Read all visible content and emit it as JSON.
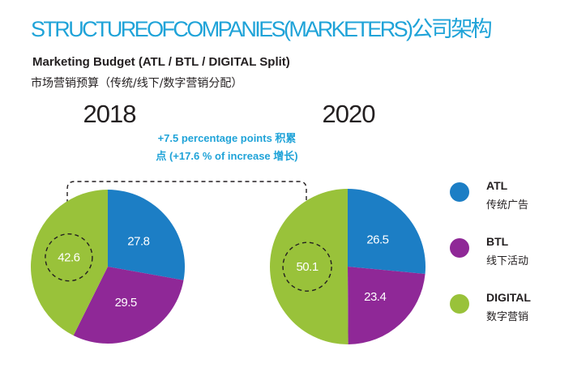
{
  "header": {
    "title": "STRUCTUREOFCOMPANIES(MARKETERS)公司架构",
    "subtitle_en": "Marketing Budget (ATL / BTL / DIGITAL Split)",
    "subtitle_cn": "市场营销预算（传统/线下/数字营销分配）"
  },
  "annotation": {
    "line1": "+7.5 percentage points 积累",
    "line2": "点 (+17.6 % of increase 增长)"
  },
  "colors": {
    "title": "#1fa3d8",
    "atl": "#1c7ec5",
    "btl": "#8f2897",
    "digital": "#99c23a",
    "text_dark": "#231f20",
    "slice_text": "#ffffff"
  },
  "chart_data": [
    {
      "type": "pie",
      "title": "2018",
      "slices": [
        {
          "label": "ATL",
          "value": 27.8
        },
        {
          "label": "BTL",
          "value": 29.5
        },
        {
          "label": "DIGITAL",
          "value": 42.6
        }
      ]
    },
    {
      "type": "pie",
      "title": "2020",
      "slices": [
        {
          "label": "ATL",
          "value": 26.5
        },
        {
          "label": "BTL",
          "value": 23.4
        },
        {
          "label": "DIGITAL",
          "value": 50.1
        }
      ]
    }
  ],
  "legend": [
    {
      "key": "atl",
      "label_en": "ATL",
      "label_cn": "传统广告"
    },
    {
      "key": "btl",
      "label_en": "BTL",
      "label_cn": "线下活动"
    },
    {
      "key": "digital",
      "label_en": "DIGITAL",
      "label_cn": "数字营销"
    }
  ]
}
